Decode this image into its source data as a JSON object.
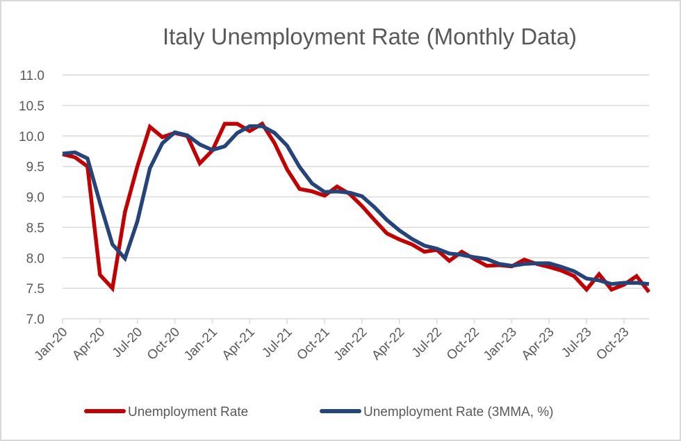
{
  "chart_data": {
    "type": "line",
    "title": "Italy Unemployment Rate (Monthly Data)",
    "xlabel": "",
    "ylabel": "",
    "ylim": [
      7.0,
      11.0
    ],
    "yticks": [
      "7.0",
      "7.5",
      "8.0",
      "8.5",
      "9.0",
      "9.5",
      "10.0",
      "10.5",
      "11.0"
    ],
    "ytick_values": [
      7.0,
      7.5,
      8.0,
      8.5,
      9.0,
      9.5,
      10.0,
      10.5,
      11.0
    ],
    "grid": true,
    "legend_position": "bottom",
    "x": [
      "Jan-20",
      "Feb-20",
      "Mar-20",
      "Apr-20",
      "May-20",
      "Jun-20",
      "Jul-20",
      "Aug-20",
      "Sep-20",
      "Oct-20",
      "Nov-20",
      "Dec-20",
      "Jan-21",
      "Feb-21",
      "Mar-21",
      "Apr-21",
      "May-21",
      "Jun-21",
      "Jul-21",
      "Aug-21",
      "Sep-21",
      "Oct-21",
      "Nov-21",
      "Dec-21",
      "Jan-22",
      "Feb-22",
      "Mar-22",
      "Apr-22",
      "May-22",
      "Jun-22",
      "Jul-22",
      "Aug-22",
      "Sep-22",
      "Oct-22",
      "Nov-22",
      "Dec-22",
      "Jan-23",
      "Feb-23",
      "Mar-23",
      "Apr-23",
      "May-23",
      "Jun-23",
      "Jul-23",
      "Aug-23",
      "Sep-23",
      "Oct-23",
      "Nov-23",
      "Dec-23"
    ],
    "xtick_labels": [
      "Jan-20",
      "Apr-20",
      "Jul-20",
      "Oct-20",
      "Jan-21",
      "Apr-21",
      "Jul-21",
      "Oct-21",
      "Jan-22",
      "Apr-22",
      "Jul-22",
      "Oct-22",
      "Jan-23",
      "Apr-23",
      "Jul-23",
      "Oct-23"
    ],
    "series": [
      {
        "name": "Unemployment Rate",
        "color": "#c00000",
        "values": [
          9.7,
          9.65,
          9.5,
          7.72,
          7.5,
          8.75,
          9.5,
          10.15,
          9.98,
          10.05,
          10.0,
          9.55,
          9.76,
          10.2,
          10.2,
          10.08,
          10.2,
          9.88,
          9.45,
          9.13,
          9.09,
          9.02,
          9.17,
          9.05,
          8.85,
          8.62,
          8.4,
          8.3,
          8.22,
          8.1,
          8.13,
          7.95,
          8.1,
          7.98,
          7.87,
          7.88,
          7.86,
          7.97,
          7.9,
          7.85,
          7.79,
          7.7,
          7.48,
          7.73,
          7.48,
          7.56,
          7.7,
          7.44
        ]
      },
      {
        "name": "Unemployment Rate (3MMA, %)",
        "color": "#264478",
        "values": [
          9.71,
          9.73,
          9.63,
          8.9,
          8.22,
          7.99,
          8.6,
          9.47,
          9.88,
          10.06,
          10.01,
          9.86,
          9.77,
          9.83,
          10.05,
          10.16,
          10.16,
          10.05,
          9.84,
          9.49,
          9.22,
          9.08,
          9.09,
          9.07,
          9.01,
          8.83,
          8.62,
          8.45,
          8.31,
          8.2,
          8.15,
          8.07,
          8.05,
          8.01,
          7.98,
          7.9,
          7.87,
          7.9,
          7.91,
          7.91,
          7.85,
          7.78,
          7.66,
          7.63,
          7.57,
          7.59,
          7.59,
          7.57
        ]
      }
    ]
  }
}
